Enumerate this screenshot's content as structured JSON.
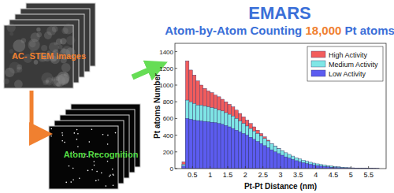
{
  "header": {
    "title": "EMARS",
    "subtitle": [
      "Atom-by-Atom Counting",
      "18,000",
      "Pt atoms"
    ]
  },
  "panels": [
    {
      "label": "AC- STEM images"
    },
    {
      "label": "Atom Recognition"
    }
  ],
  "chart_data": {
    "type": "histogram",
    "x_label": "Pt-Pt Distance (nm)",
    "y_label": "Pt atoms Number",
    "bins": [
      0.2,
      0.3,
      0.4,
      0.5,
      0.6,
      0.7,
      0.8,
      0.9,
      1.0,
      1.1,
      1.2,
      1.3,
      1.4,
      1.5,
      1.6,
      1.7,
      1.8,
      1.9,
      2.0,
      2.1,
      2.2,
      2.3,
      2.4,
      2.5,
      2.6,
      2.7,
      2.8,
      2.9,
      3.0,
      3.1,
      3.2,
      3.3,
      3.4,
      3.5,
      3.6,
      3.7,
      3.8,
      3.9,
      4.0,
      4.1,
      4.2,
      4.3,
      4.4,
      4.5,
      4.6,
      4.7,
      4.8,
      4.9,
      5.0,
      5.1,
      5.2,
      5.3,
      5.4,
      5.5,
      5.6,
      5.7,
      5.8
    ],
    "series": [
      {
        "name": "High Activity",
        "color": "#f25c5c",
        "values": [
          80,
          1290,
          1180,
          1120,
          1050,
          1000,
          960,
          930,
          910,
          880,
          860,
          830,
          800,
          770,
          740,
          700,
          660,
          620,
          580,
          540,
          500,
          460,
          420,
          380,
          340,
          300,
          270,
          240,
          210,
          185,
          160,
          140,
          120,
          100,
          85,
          72,
          60,
          50,
          42,
          35,
          29,
          24,
          20,
          16,
          13,
          11,
          9,
          7,
          6,
          5,
          4,
          3,
          2,
          2,
          1,
          1
        ]
      },
      {
        "name": "Medium Activity",
        "color": "#7fe6e6",
        "values": [
          50,
          820,
          800,
          780,
          760,
          760,
          750,
          740,
          730,
          720,
          700,
          690,
          670,
          650,
          630,
          600,
          570,
          540,
          510,
          480,
          450,
          420,
          390,
          360,
          330,
          300,
          270,
          240,
          215,
          190,
          170,
          150,
          130,
          115,
          100,
          88,
          76,
          66,
          57,
          49,
          42,
          36,
          30,
          25,
          21,
          17,
          14,
          11,
          9,
          7,
          6,
          5,
          4,
          3,
          2,
          1
        ]
      },
      {
        "name": "Low Activity",
        "color": "#5c5cf0",
        "values": [
          30,
          600,
          590,
          580,
          575,
          570,
          565,
          560,
          555,
          550,
          540,
          530,
          515,
          500,
          480,
          460,
          440,
          420,
          400,
          375,
          350,
          325,
          300,
          275,
          250,
          225,
          200,
          180,
          160,
          140,
          125,
          110,
          95,
          82,
          70,
          60,
          51,
          43,
          36,
          30,
          25,
          21,
          17,
          14,
          11,
          9,
          7,
          6,
          5,
          4,
          3,
          2,
          2,
          1,
          1,
          1
        ]
      }
    ],
    "xlim": [
      0,
      6
    ],
    "xticks": [
      0.5,
      1,
      1.5,
      2,
      2.5,
      3,
      3.5,
      4,
      4.5,
      5,
      5.5
    ],
    "ylim": [
      0,
      1500
    ],
    "yticks": [
      0,
      200,
      400,
      600,
      800,
      1000,
      1200,
      1400
    ],
    "legend": "upper right",
    "stacked": false
  }
}
